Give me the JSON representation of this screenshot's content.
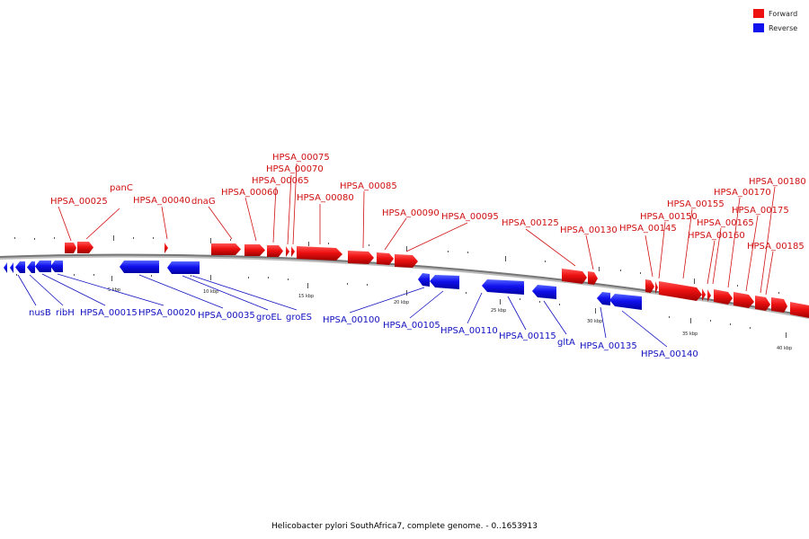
{
  "title": "Helicobacter pylori SouthAfrica7, complete genome. - 0..1653913",
  "legend": [
    {
      "label": "Forward",
      "color": "#ee1111"
    },
    {
      "label": "Reverse",
      "color": "#1111ee"
    }
  ],
  "scale_labels": [
    "5 kbp",
    "10 kbp",
    "15 kbp",
    "20 kbp",
    "25 kbp",
    "30 kbp",
    "35 kbp",
    "40 kbp"
  ],
  "forward_genes": [
    "HPSA_00025",
    "panC",
    "HPSA_00040",
    "dnaG",
    "HPSA_00060",
    "HPSA_00065",
    "HPSA_00070",
    "HPSA_00075",
    "HPSA_00080",
    "HPSA_00085",
    "HPSA_00090",
    "HPSA_00095",
    "HPSA_00125",
    "HPSA_00130",
    "HPSA_00145",
    "HPSA_00150",
    "HPSA_00155",
    "HPSA_00160",
    "HPSA_00165",
    "HPSA_00170",
    "HPSA_00175",
    "HPSA_00180",
    "HPSA_00185"
  ],
  "reverse_genes": [
    "nusB",
    "ribH",
    "HPSA_00015",
    "HPSA_00020",
    "HPSA_00035",
    "groEL",
    "groES",
    "HPSA_00100",
    "HPSA_00105",
    "HPSA_00110",
    "HPSA_00115",
    "gltA",
    "HPSA_00135",
    "HPSA_00140"
  ]
}
